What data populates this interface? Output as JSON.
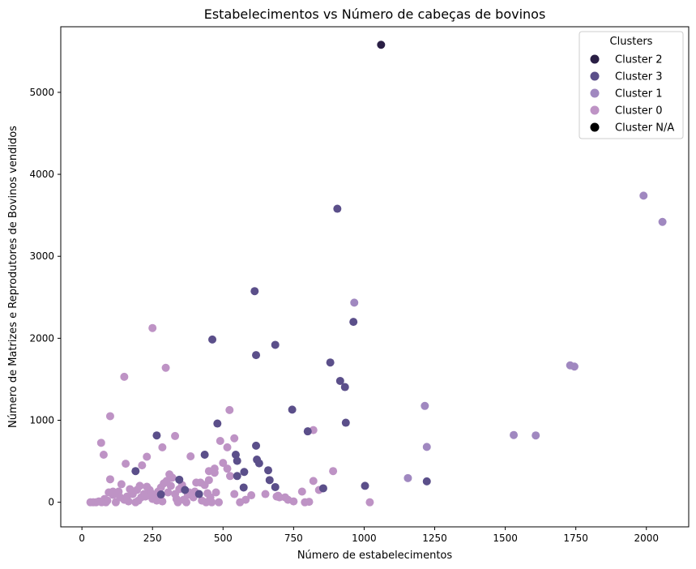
{
  "chart_data": {
    "type": "scatter",
    "title": "Estabelecimentos vs Número de cabeças de bovinos",
    "xlabel": "Número de estabelecimentos",
    "ylabel": "Número de Matrizes e Reprodutores de Bovinos vendidos",
    "xlim": [
      -75,
      2150
    ],
    "ylim": [
      -300,
      5800
    ],
    "xticks": [
      0,
      250,
      500,
      750,
      1000,
      1250,
      1500,
      1750,
      2000
    ],
    "yticks": [
      0,
      1000,
      2000,
      3000,
      4000,
      5000
    ],
    "grid": false,
    "legend": {
      "title": "Clusters",
      "placement": "top-right",
      "entries": [
        {
          "label": "Cluster 2",
          "color": "#2a1f45"
        },
        {
          "label": "Cluster 3",
          "color": "#5b4f8a"
        },
        {
          "label": "Cluster 1",
          "color": "#a088c0"
        },
        {
          "label": "Cluster 0",
          "color": "#be93c5"
        },
        {
          "label": "Cluster N/A",
          "color": "#000000"
        }
      ]
    },
    "series": [
      {
        "name": "Cluster 2",
        "color": "#2a1f45",
        "points": [
          [
            1060,
            5580
          ]
        ]
      },
      {
        "name": "Cluster 3",
        "color": "#5b4f8a",
        "points": [
          [
            905,
            3580
          ],
          [
            612,
            2575
          ],
          [
            462,
            1985
          ],
          [
            685,
            1920
          ],
          [
            617,
            1795
          ],
          [
            962,
            2200
          ],
          [
            880,
            1705
          ],
          [
            915,
            1480
          ],
          [
            932,
            1405
          ],
          [
            745,
            1130
          ],
          [
            935,
            970
          ],
          [
            480,
            960
          ],
          [
            800,
            865
          ],
          [
            265,
            815
          ],
          [
            617,
            690
          ],
          [
            435,
            580
          ],
          [
            545,
            580
          ],
          [
            620,
            520
          ],
          [
            550,
            505
          ],
          [
            628,
            475
          ],
          [
            190,
            380
          ],
          [
            575,
            370
          ],
          [
            660,
            390
          ],
          [
            550,
            320
          ],
          [
            665,
            270
          ],
          [
            345,
            275
          ],
          [
            685,
            185
          ],
          [
            573,
            180
          ],
          [
            855,
            170
          ],
          [
            1003,
            200
          ],
          [
            1222,
            255
          ],
          [
            365,
            150
          ],
          [
            415,
            100
          ],
          [
            280,
            95
          ]
        ]
      },
      {
        "name": "Cluster 1",
        "color": "#a088c0",
        "points": [
          [
            1990,
            3740
          ],
          [
            2057,
            3420
          ],
          [
            965,
            2435
          ],
          [
            1730,
            1670
          ],
          [
            1745,
            1655
          ],
          [
            1215,
            1175
          ],
          [
            1530,
            820
          ],
          [
            1608,
            815
          ],
          [
            1222,
            675
          ],
          [
            1155,
            295
          ]
        ]
      },
      {
        "name": "Cluster 0",
        "color": "#be93c5",
        "points": [
          [
            250,
            2125
          ],
          [
            297,
            1640
          ],
          [
            150,
            1530
          ],
          [
            100,
            1050
          ],
          [
            523,
            1125
          ],
          [
            68,
            725
          ],
          [
            820,
            880
          ],
          [
            77,
            580
          ],
          [
            330,
            808
          ],
          [
            490,
            748
          ],
          [
            540,
            780
          ],
          [
            230,
            555
          ],
          [
            385,
            560
          ],
          [
            515,
            670
          ],
          [
            285,
            670
          ],
          [
            155,
            470
          ],
          [
            213,
            450
          ],
          [
            450,
            380
          ],
          [
            470,
            410
          ],
          [
            500,
            480
          ],
          [
            470,
            360
          ],
          [
            890,
            380
          ],
          [
            820,
            260
          ],
          [
            840,
            150
          ],
          [
            780,
            130
          ],
          [
            805,
            5
          ],
          [
            790,
            0
          ],
          [
            750,
            10
          ],
          [
            730,
            30
          ],
          [
            720,
            60
          ],
          [
            700,
            60
          ],
          [
            650,
            100
          ],
          [
            600,
            85
          ],
          [
            580,
            30
          ],
          [
            560,
            0
          ],
          [
            540,
            100
          ],
          [
            525,
            320
          ],
          [
            515,
            410
          ],
          [
            460,
            0
          ],
          [
            440,
            0
          ],
          [
            450,
            270
          ],
          [
            420,
            240
          ],
          [
            400,
            130
          ],
          [
            380,
            120
          ],
          [
            370,
            0
          ],
          [
            360,
            30
          ],
          [
            340,
            0
          ],
          [
            330,
            100
          ],
          [
            320,
            300
          ],
          [
            310,
            340
          ],
          [
            300,
            260
          ],
          [
            290,
            230
          ],
          [
            280,
            180
          ],
          [
            270,
            130
          ],
          [
            260,
            80
          ],
          [
            250,
            40
          ],
          [
            240,
            150
          ],
          [
            230,
            190
          ],
          [
            220,
            100
          ],
          [
            210,
            60
          ],
          [
            200,
            20
          ],
          [
            190,
            0
          ],
          [
            180,
            100
          ],
          [
            170,
            160
          ],
          [
            160,
            70
          ],
          [
            150,
            30
          ],
          [
            140,
            220
          ],
          [
            130,
            130
          ],
          [
            120,
            0
          ],
          [
            110,
            90
          ],
          [
            100,
            280
          ],
          [
            95,
            120
          ],
          [
            90,
            20
          ],
          [
            85,
            0
          ],
          [
            80,
            40
          ],
          [
            70,
            0
          ],
          [
            60,
            10
          ],
          [
            50,
            0
          ],
          [
            40,
            0
          ],
          [
            30,
            0
          ],
          [
            110,
            130
          ],
          [
            135,
            60
          ],
          [
            165,
            10
          ],
          [
            195,
            150
          ],
          [
            205,
            200
          ],
          [
            225,
            70
          ],
          [
            245,
            110
          ],
          [
            265,
            20
          ],
          [
            285,
            10
          ],
          [
            305,
            120
          ],
          [
            315,
            200
          ],
          [
            335,
            40
          ],
          [
            345,
            160
          ],
          [
            355,
            210
          ],
          [
            375,
            90
          ],
          [
            395,
            60
          ],
          [
            405,
            240
          ],
          [
            425,
            20
          ],
          [
            435,
            210
          ],
          [
            445,
            110
          ],
          [
            455,
            60
          ],
          [
            475,
            120
          ],
          [
            485,
            0
          ],
          [
            1020,
            0
          ],
          [
            690,
            70
          ],
          [
            695,
            80
          ]
        ]
      }
    ]
  }
}
